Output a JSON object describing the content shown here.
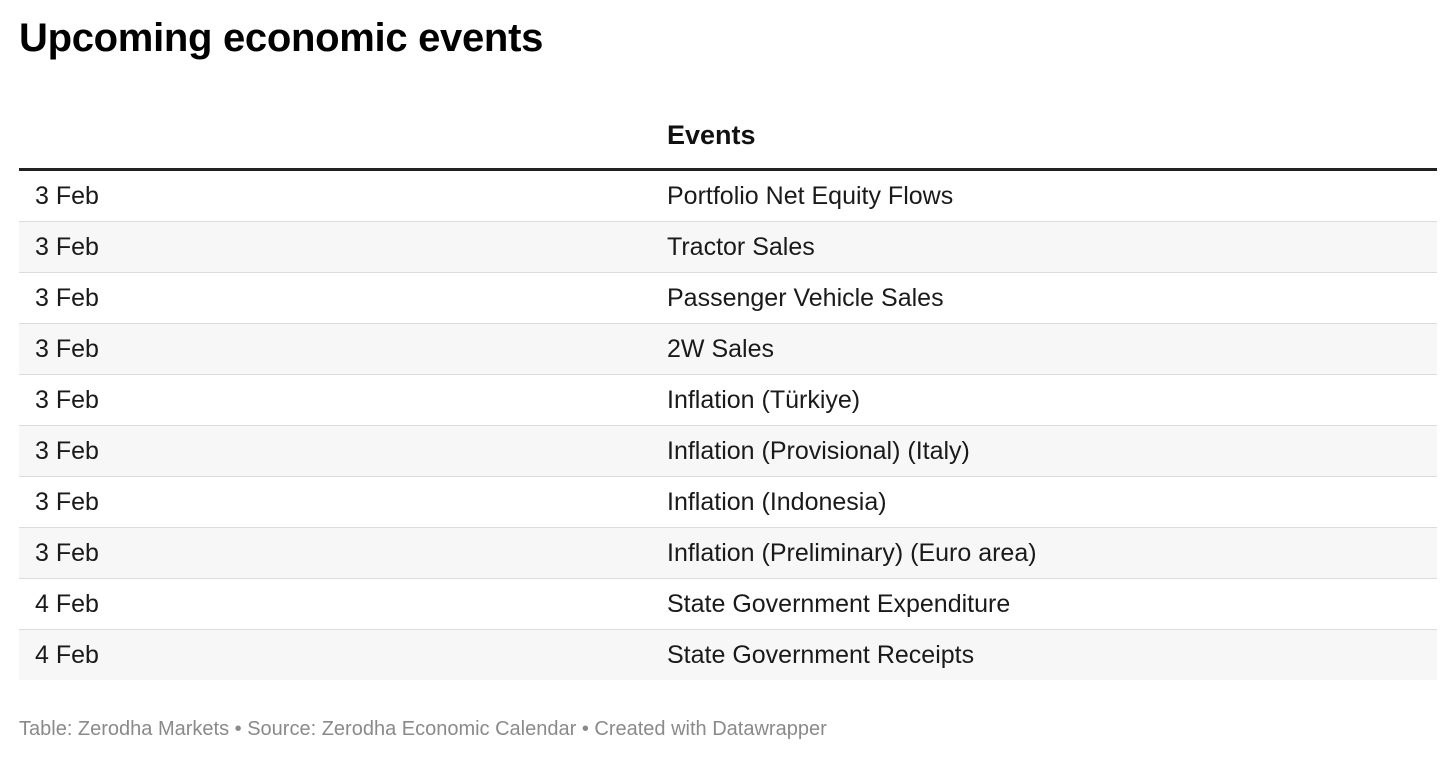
{
  "title": "Upcoming economic events",
  "columns": [
    "",
    "Events"
  ],
  "chart_data": {
    "type": "table",
    "title": "Upcoming economic events",
    "columns": [
      "",
      "Events"
    ],
    "rows": [
      {
        "date": "3 Feb",
        "event": "Portfolio Net Equity Flows"
      },
      {
        "date": "3 Feb",
        "event": "Tractor Sales"
      },
      {
        "date": "3 Feb",
        "event": "Passenger Vehicle Sales"
      },
      {
        "date": "3 Feb",
        "event": "2W Sales"
      },
      {
        "date": "3 Feb",
        "event": "Inflation (Türkiye)"
      },
      {
        "date": "3 Feb",
        "event": "Inflation (Provisional) (Italy)"
      },
      {
        "date": "3 Feb",
        "event": "Inflation (Indonesia)"
      },
      {
        "date": "3 Feb",
        "event": "Inflation (Preliminary) (Euro area)"
      },
      {
        "date": "4 Feb",
        "event": "State Government Expenditure"
      },
      {
        "date": "4 Feb",
        "event": "State Government Receipts"
      }
    ]
  },
  "footer": "Table: Zerodha Markets • Source: Zerodha Economic Calendar • Created with Datawrapper",
  "colors": {
    "header_rule": "#222222",
    "row_alt_bg": "#f7f7f7",
    "row_divider": "#dcdcdc",
    "footer_text": "#8a8a8a"
  }
}
